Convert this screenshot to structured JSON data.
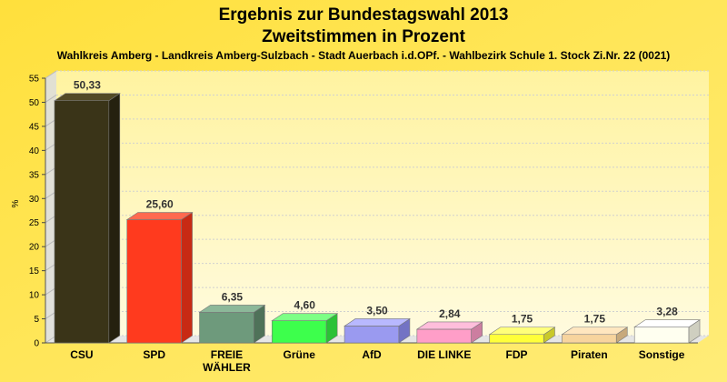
{
  "chart_data": {
    "type": "bar",
    "title": "Ergebnis zur Bundestagswahl 2013",
    "subtitle": "Zweitstimmen in Prozent",
    "caption": "Wahlkreis Amberg - Landkreis Amberg-Sulzbach - Stadt Auerbach i.d.OPf. - Wahlbezirk Schule 1. Stock Zi.Nr. 22 (0021)",
    "ylabel": "%",
    "ylim": [
      0,
      55
    ],
    "yticks": [
      0,
      5,
      10,
      15,
      20,
      25,
      30,
      35,
      40,
      45,
      50,
      55
    ],
    "grid": true,
    "categories": [
      "CSU",
      "SPD",
      "FREIE WÄHLER",
      "Grüne",
      "AfD",
      "DIE LINKE",
      "FDP",
      "Piraten",
      "Sonstige"
    ],
    "values": [
      50.33,
      25.6,
      6.35,
      4.6,
      3.5,
      2.84,
      1.75,
      1.75,
      3.28
    ],
    "value_labels": [
      "50,33",
      "25,60",
      "6,35",
      "4,60",
      "3,50",
      "2,84",
      "1,75",
      "1,75",
      "3,28"
    ],
    "colors": [
      "#3a3418",
      "#ff3a1e",
      "#6e9a7c",
      "#3dff4c",
      "#9a9af0",
      "#ff9ec8",
      "#ffff3a",
      "#f7d49e",
      "#fffff0"
    ],
    "side_colors": [
      "#25210f",
      "#c82a14",
      "#4f7259",
      "#2bc236",
      "#7373c4",
      "#cc7ea0",
      "#c9c92a",
      "#c7a97c",
      "#cfcfc0"
    ],
    "top_colors": [
      "#524a26",
      "#ff6a50",
      "#8cb899",
      "#7dff86",
      "#b8b8ff",
      "#ffbedb",
      "#ffff7a",
      "#ffe6bf",
      "#ffffff"
    ]
  }
}
